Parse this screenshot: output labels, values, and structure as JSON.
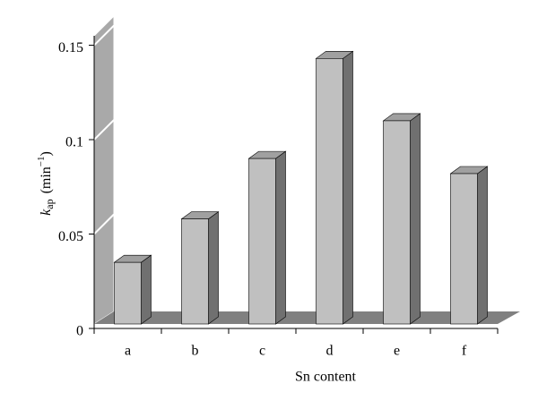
{
  "chart_data": {
    "type": "bar3d",
    "x_label": "Sn content",
    "y_label": [
      "k",
      "ap",
      "(min",
      "−1",
      ")"
    ],
    "categories": [
      "a",
      "b",
      "c",
      "d",
      "e",
      "f"
    ],
    "values": [
      0.035,
      0.058,
      0.09,
      0.143,
      0.11,
      0.082
    ],
    "color": "#c0c0c0",
    "ylim": [
      0,
      0.155
    ],
    "yticks": [
      0,
      0.05,
      {
        "value": 0.1,
        "label": "0.1"
      },
      0.15
    ],
    "grid": true
  }
}
